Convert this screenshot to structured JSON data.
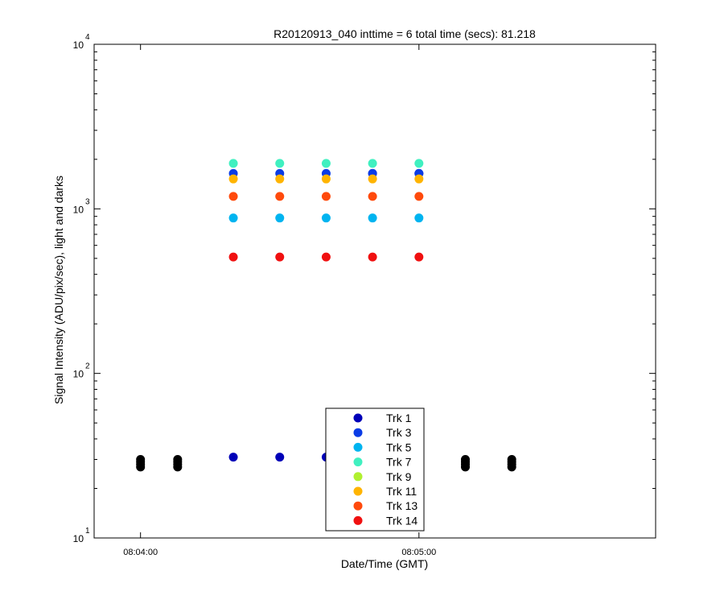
{
  "chart_data": {
    "type": "scatter",
    "title": "R20120913_040 inttime = 6 total time (secs): 81.218",
    "xlabel": "Date/Time (GMT)",
    "ylabel": "Signal Intensity (ADU/pix/sec), light and darks",
    "y_scale": "log",
    "ylim": [
      10,
      10000
    ],
    "xlim": [
      "08:03:50",
      "08:05:51"
    ],
    "x_ticks": [
      "08:04:00",
      "08:05:00"
    ],
    "y_ticks": [
      {
        "base": "10",
        "exp": "1",
        "value": 10
      },
      {
        "base": "10",
        "exp": "2",
        "value": 100
      },
      {
        "base": "10",
        "exp": "3",
        "value": 1000
      },
      {
        "base": "10",
        "exp": "4",
        "value": 10000
      }
    ],
    "legend_position": "bottom-center",
    "series": [
      {
        "name": "Trk 1",
        "color": "#0000b8",
        "x": [
          "08:04:20",
          "08:04:30",
          "08:04:40",
          "08:04:50",
          "08:05:00"
        ],
        "y": [
          31,
          31,
          31,
          1640,
          1640
        ]
      },
      {
        "name": "Trk 3",
        "color": "#0a3ce6",
        "x": [
          "08:04:20",
          "08:04:30",
          "08:04:40",
          "08:04:50",
          "08:05:00"
        ],
        "y": [
          1640,
          1640,
          1640,
          1640,
          1640
        ]
      },
      {
        "name": "Trk 5",
        "color": "#00b4f0",
        "x": [
          "08:04:20",
          "08:04:30",
          "08:04:40",
          "08:04:50",
          "08:05:00"
        ],
        "y": [
          880,
          880,
          880,
          880,
          880
        ]
      },
      {
        "name": "Trk 7",
        "color": "#40f0c0",
        "x": [
          "08:04:20",
          "08:04:30",
          "08:04:40",
          "08:04:50",
          "08:05:00"
        ],
        "y": [
          1890,
          1890,
          1890,
          1890,
          1890
        ]
      },
      {
        "name": "Trk 9",
        "color": "#b0f030",
        "x": [],
        "y": []
      },
      {
        "name": "Trk 11",
        "color": "#ffb400",
        "x": [
          "08:04:20",
          "08:04:30",
          "08:04:40",
          "08:04:50",
          "08:05:00"
        ],
        "y": [
          1520,
          1520,
          1520,
          1520,
          1520
        ]
      },
      {
        "name": "Trk 13",
        "color": "#ff4a0c",
        "x": [
          "08:04:20",
          "08:04:30",
          "08:04:40",
          "08:04:50",
          "08:05:00"
        ],
        "y": [
          1190,
          1190,
          1190,
          1190,
          1190
        ]
      },
      {
        "name": "Trk 14",
        "color": "#f01010",
        "x": [
          "08:04:20",
          "08:04:30",
          "08:04:40",
          "08:04:50",
          "08:05:00"
        ],
        "y": [
          510,
          510,
          510,
          510,
          510
        ]
      }
    ],
    "darks": {
      "color": "#000000",
      "x": [
        "08:04:00",
        "08:04:08",
        "08:05:10",
        "08:05:20"
      ],
      "y": [
        [
          27,
          28,
          29,
          30
        ],
        [
          27,
          28,
          29,
          30
        ],
        [
          27,
          28,
          29,
          30
        ],
        [
          27,
          28,
          29,
          30
        ]
      ]
    }
  }
}
